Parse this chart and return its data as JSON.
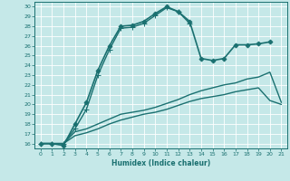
{
  "xlabel": "Humidex (Indice chaleur)",
  "background_color": "#c5e8e8",
  "grid_color": "#ffffff",
  "line_color": "#1a7070",
  "xlim": [
    -0.5,
    21.5
  ],
  "ylim": [
    15.5,
    30.5
  ],
  "xticks": [
    0,
    1,
    2,
    3,
    4,
    5,
    6,
    7,
    8,
    9,
    10,
    11,
    12,
    13,
    14,
    15,
    16,
    17,
    18,
    19,
    20,
    21
  ],
  "yticks": [
    16,
    17,
    18,
    19,
    20,
    21,
    22,
    23,
    24,
    25,
    26,
    27,
    28,
    29,
    30
  ],
  "series": [
    {
      "x": [
        0,
        1,
        2,
        3,
        4,
        5,
        6,
        7,
        8,
        9,
        10,
        11,
        12,
        13,
        14,
        15,
        16,
        17,
        18,
        19,
        20
      ],
      "y": [
        16,
        16,
        15.8,
        18,
        20.2,
        23.5,
        26,
        28,
        28.1,
        28.5,
        29.3,
        30,
        29.5,
        28.5,
        24.7,
        24.5,
        24.7,
        26.1,
        26.1,
        26.2,
        26.4
      ],
      "marker": "D",
      "markersize": 2.5,
      "linewidth": 1.2
    },
    {
      "x": [
        0,
        1,
        2,
        3,
        4,
        5,
        6,
        7,
        8,
        9,
        10,
        11,
        12,
        13
      ],
      "y": [
        16,
        16,
        16,
        17.5,
        19.5,
        23,
        25.6,
        27.8,
        27.9,
        28.3,
        29.1,
        29.9,
        29.5,
        28.3
      ],
      "marker": "+",
      "markersize": 4,
      "linewidth": 1.0
    },
    {
      "x": [
        0,
        1,
        2,
        3,
        4,
        5,
        6,
        7,
        8,
        9,
        10,
        11,
        12,
        13,
        14,
        15,
        16,
        17,
        18,
        19,
        20,
        21
      ],
      "y": [
        16,
        16,
        16,
        17.2,
        17.5,
        18.0,
        18.5,
        19.0,
        19.2,
        19.4,
        19.7,
        20.1,
        20.5,
        21.0,
        21.4,
        21.7,
        22.0,
        22.2,
        22.6,
        22.8,
        23.3,
        20.2
      ],
      "marker": null,
      "markersize": 0,
      "linewidth": 1.0
    },
    {
      "x": [
        0,
        1,
        2,
        3,
        4,
        5,
        6,
        7,
        8,
        9,
        10,
        11,
        12,
        13,
        14,
        15,
        16,
        17,
        18,
        19,
        20,
        21
      ],
      "y": [
        16,
        16,
        16,
        16.8,
        17.1,
        17.5,
        18.0,
        18.4,
        18.7,
        19.0,
        19.2,
        19.5,
        19.9,
        20.3,
        20.6,
        20.8,
        21.0,
        21.3,
        21.5,
        21.7,
        20.4,
        20.0
      ],
      "marker": null,
      "markersize": 0,
      "linewidth": 1.0
    }
  ]
}
